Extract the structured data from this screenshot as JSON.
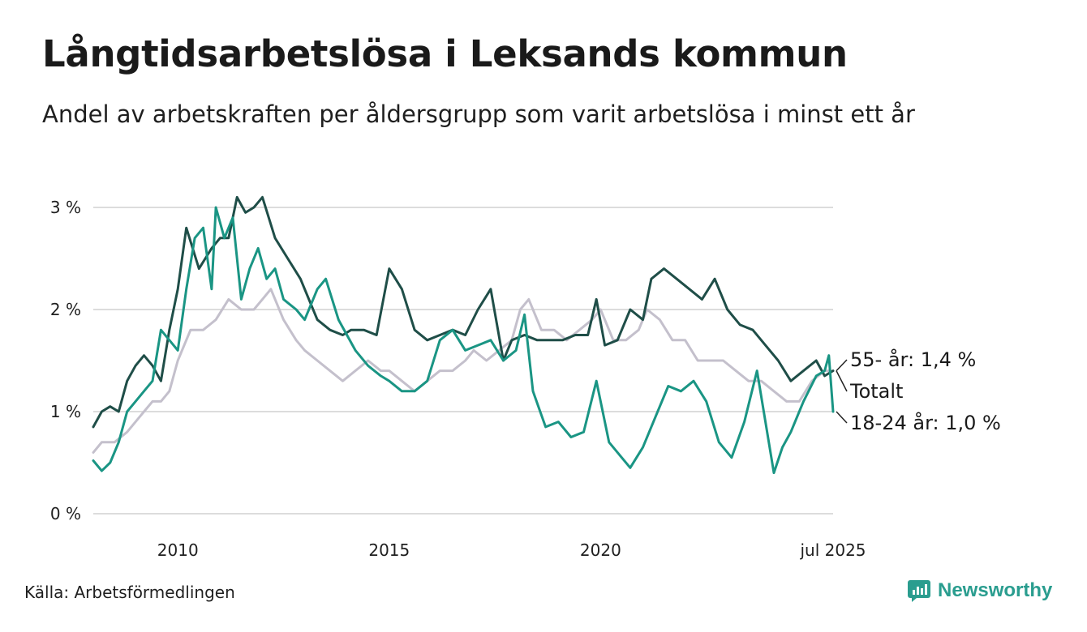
{
  "header": {
    "title": "Långtidsarbetslösa i Leksands kommun",
    "subtitle": "Andel av arbetskraften per åldersgrupp som varit arbetslösa i minst ett år"
  },
  "footer": {
    "source": "Källa: Arbetsförmedlingen",
    "brand": "Newsworthy"
  },
  "colors": {
    "total": "#c4c0cc",
    "age_55": "#1f4e48",
    "age_18_24": "#1a9584",
    "grid": "#dcdcdc",
    "brand": "#2a9d8f"
  },
  "chart_data": {
    "type": "line",
    "title": "Långtidsarbetslösa i Leksands kommun",
    "subtitle": "Andel av arbetskraften per åldersgrupp som varit arbetslösa i minst ett år",
    "xlabel": "",
    "ylabel": "",
    "xlim": [
      2008.0,
      2025.5
    ],
    "ylim": [
      0,
      3.4
    ],
    "y_ticks": [
      0,
      1,
      2,
      3
    ],
    "y_tick_labels": [
      "0 %",
      "1 %",
      "2 %",
      "3 %"
    ],
    "x_ticks": [
      2010,
      2015,
      2020,
      2025.5
    ],
    "x_tick_labels": [
      "2010",
      "2015",
      "2020",
      "jul 2025"
    ],
    "grid": "horizontal",
    "legend": "end-labels",
    "series": [
      {
        "name": "Totalt",
        "label": "Totalt",
        "key": "total",
        "x": [
          2008.0,
          2008.2,
          2008.5,
          2008.8,
          2009.0,
          2009.2,
          2009.4,
          2009.6,
          2009.8,
          2010.0,
          2010.3,
          2010.6,
          2010.9,
          2011.2,
          2011.5,
          2011.8,
          2012.0,
          2012.2,
          2012.5,
          2012.8,
          2013.0,
          2013.3,
          2013.6,
          2013.9,
          2014.2,
          2014.5,
          2014.8,
          2015.0,
          2015.3,
          2015.6,
          2015.9,
          2016.2,
          2016.5,
          2016.8,
          2017.0,
          2017.3,
          2017.6,
          2017.9,
          2018.1,
          2018.3,
          2018.6,
          2018.9,
          2019.2,
          2019.5,
          2019.8,
          2020.0,
          2020.3,
          2020.6,
          2020.9,
          2021.1,
          2021.4,
          2021.7,
          2022.0,
          2022.3,
          2022.6,
          2022.9,
          2023.2,
          2023.5,
          2023.8,
          2024.1,
          2024.4,
          2024.7,
          2025.0,
          2025.3,
          2025.5
        ],
        "y": [
          0.6,
          0.7,
          0.7,
          0.8,
          0.9,
          1.0,
          1.1,
          1.1,
          1.2,
          1.5,
          1.8,
          1.8,
          1.9,
          2.1,
          2.0,
          2.0,
          2.1,
          2.2,
          1.9,
          1.7,
          1.6,
          1.5,
          1.4,
          1.3,
          1.4,
          1.5,
          1.4,
          1.4,
          1.3,
          1.2,
          1.3,
          1.4,
          1.4,
          1.5,
          1.6,
          1.5,
          1.6,
          1.7,
          2.0,
          2.1,
          1.8,
          1.8,
          1.7,
          1.8,
          1.9,
          2.0,
          1.7,
          1.7,
          1.8,
          2.0,
          1.9,
          1.7,
          1.7,
          1.5,
          1.5,
          1.5,
          1.4,
          1.3,
          1.3,
          1.2,
          1.1,
          1.1,
          1.3,
          1.4,
          1.4
        ],
        "end_value": 1.4
      },
      {
        "name": "55- år",
        "label": "55- år: 1,4 %",
        "key": "age_55",
        "x": [
          2008.0,
          2008.2,
          2008.4,
          2008.6,
          2008.8,
          2009.0,
          2009.2,
          2009.4,
          2009.6,
          2009.8,
          2010.0,
          2010.2,
          2010.5,
          2010.8,
          2011.0,
          2011.2,
          2011.4,
          2011.6,
          2011.8,
          2012.0,
          2012.3,
          2012.6,
          2012.9,
          2013.1,
          2013.3,
          2013.6,
          2013.9,
          2014.1,
          2014.4,
          2014.7,
          2015.0,
          2015.3,
          2015.6,
          2015.9,
          2016.2,
          2016.5,
          2016.8,
          2017.1,
          2017.4,
          2017.7,
          2017.9,
          2018.2,
          2018.5,
          2018.8,
          2019.1,
          2019.4,
          2019.7,
          2019.9,
          2020.1,
          2020.4,
          2020.7,
          2021.0,
          2021.2,
          2021.5,
          2021.8,
          2022.1,
          2022.4,
          2022.7,
          2023.0,
          2023.3,
          2023.6,
          2023.9,
          2024.2,
          2024.5,
          2024.8,
          2025.1,
          2025.3,
          2025.5
        ],
        "y": [
          0.85,
          1.0,
          1.05,
          1.0,
          1.3,
          1.45,
          1.55,
          1.45,
          1.3,
          1.8,
          2.2,
          2.8,
          2.4,
          2.6,
          2.7,
          2.7,
          3.1,
          2.95,
          3.0,
          3.1,
          2.7,
          2.5,
          2.3,
          2.1,
          1.9,
          1.8,
          1.75,
          1.8,
          1.8,
          1.75,
          2.4,
          2.2,
          1.8,
          1.7,
          1.75,
          1.8,
          1.75,
          2.0,
          2.2,
          1.5,
          1.7,
          1.75,
          1.7,
          1.7,
          1.7,
          1.75,
          1.75,
          2.1,
          1.65,
          1.7,
          2.0,
          1.9,
          2.3,
          2.4,
          2.3,
          2.2,
          2.1,
          2.3,
          2.0,
          1.85,
          1.8,
          1.65,
          1.5,
          1.3,
          1.4,
          1.5,
          1.35,
          1.4
        ],
        "end_value": 1.4
      },
      {
        "name": "18-24 år",
        "label": "18-24 år: 1,0 %",
        "key": "age_18_24",
        "x": [
          2008.0,
          2008.2,
          2008.4,
          2008.6,
          2008.8,
          2009.0,
          2009.2,
          2009.4,
          2009.6,
          2009.8,
          2010.0,
          2010.2,
          2010.4,
          2010.6,
          2010.8,
          2010.9,
          2011.1,
          2011.3,
          2011.5,
          2011.7,
          2011.9,
          2012.1,
          2012.3,
          2012.5,
          2012.8,
          2013.0,
          2013.3,
          2013.5,
          2013.8,
          2014.0,
          2014.2,
          2014.5,
          2014.8,
          2015.0,
          2015.3,
          2015.6,
          2015.9,
          2016.2,
          2016.5,
          2016.8,
          2017.1,
          2017.4,
          2017.7,
          2018.0,
          2018.2,
          2018.4,
          2018.7,
          2019.0,
          2019.3,
          2019.6,
          2019.9,
          2020.2,
          2020.5,
          2020.7,
          2021.0,
          2021.3,
          2021.6,
          2021.9,
          2022.2,
          2022.5,
          2022.8,
          2023.1,
          2023.4,
          2023.7,
          2023.9,
          2024.1,
          2024.3,
          2024.5,
          2024.8,
          2025.1,
          2025.3,
          2025.4,
          2025.5
        ],
        "y": [
          0.52,
          0.42,
          0.5,
          0.7,
          1.0,
          1.1,
          1.2,
          1.3,
          1.8,
          1.7,
          1.6,
          2.2,
          2.7,
          2.8,
          2.2,
          3.0,
          2.7,
          2.9,
          2.1,
          2.4,
          2.6,
          2.3,
          2.4,
          2.1,
          2.0,
          1.9,
          2.2,
          2.3,
          1.9,
          1.75,
          1.6,
          1.45,
          1.35,
          1.3,
          1.2,
          1.2,
          1.3,
          1.7,
          1.8,
          1.6,
          1.65,
          1.7,
          1.5,
          1.6,
          1.95,
          1.2,
          0.85,
          0.9,
          0.75,
          0.8,
          1.3,
          0.7,
          0.55,
          0.45,
          0.65,
          0.95,
          1.25,
          1.2,
          1.3,
          1.1,
          0.7,
          0.55,
          0.9,
          1.4,
          0.9,
          0.4,
          0.65,
          0.8,
          1.1,
          1.35,
          1.4,
          1.55,
          1.0
        ],
        "end_value": 1.0
      }
    ]
  }
}
